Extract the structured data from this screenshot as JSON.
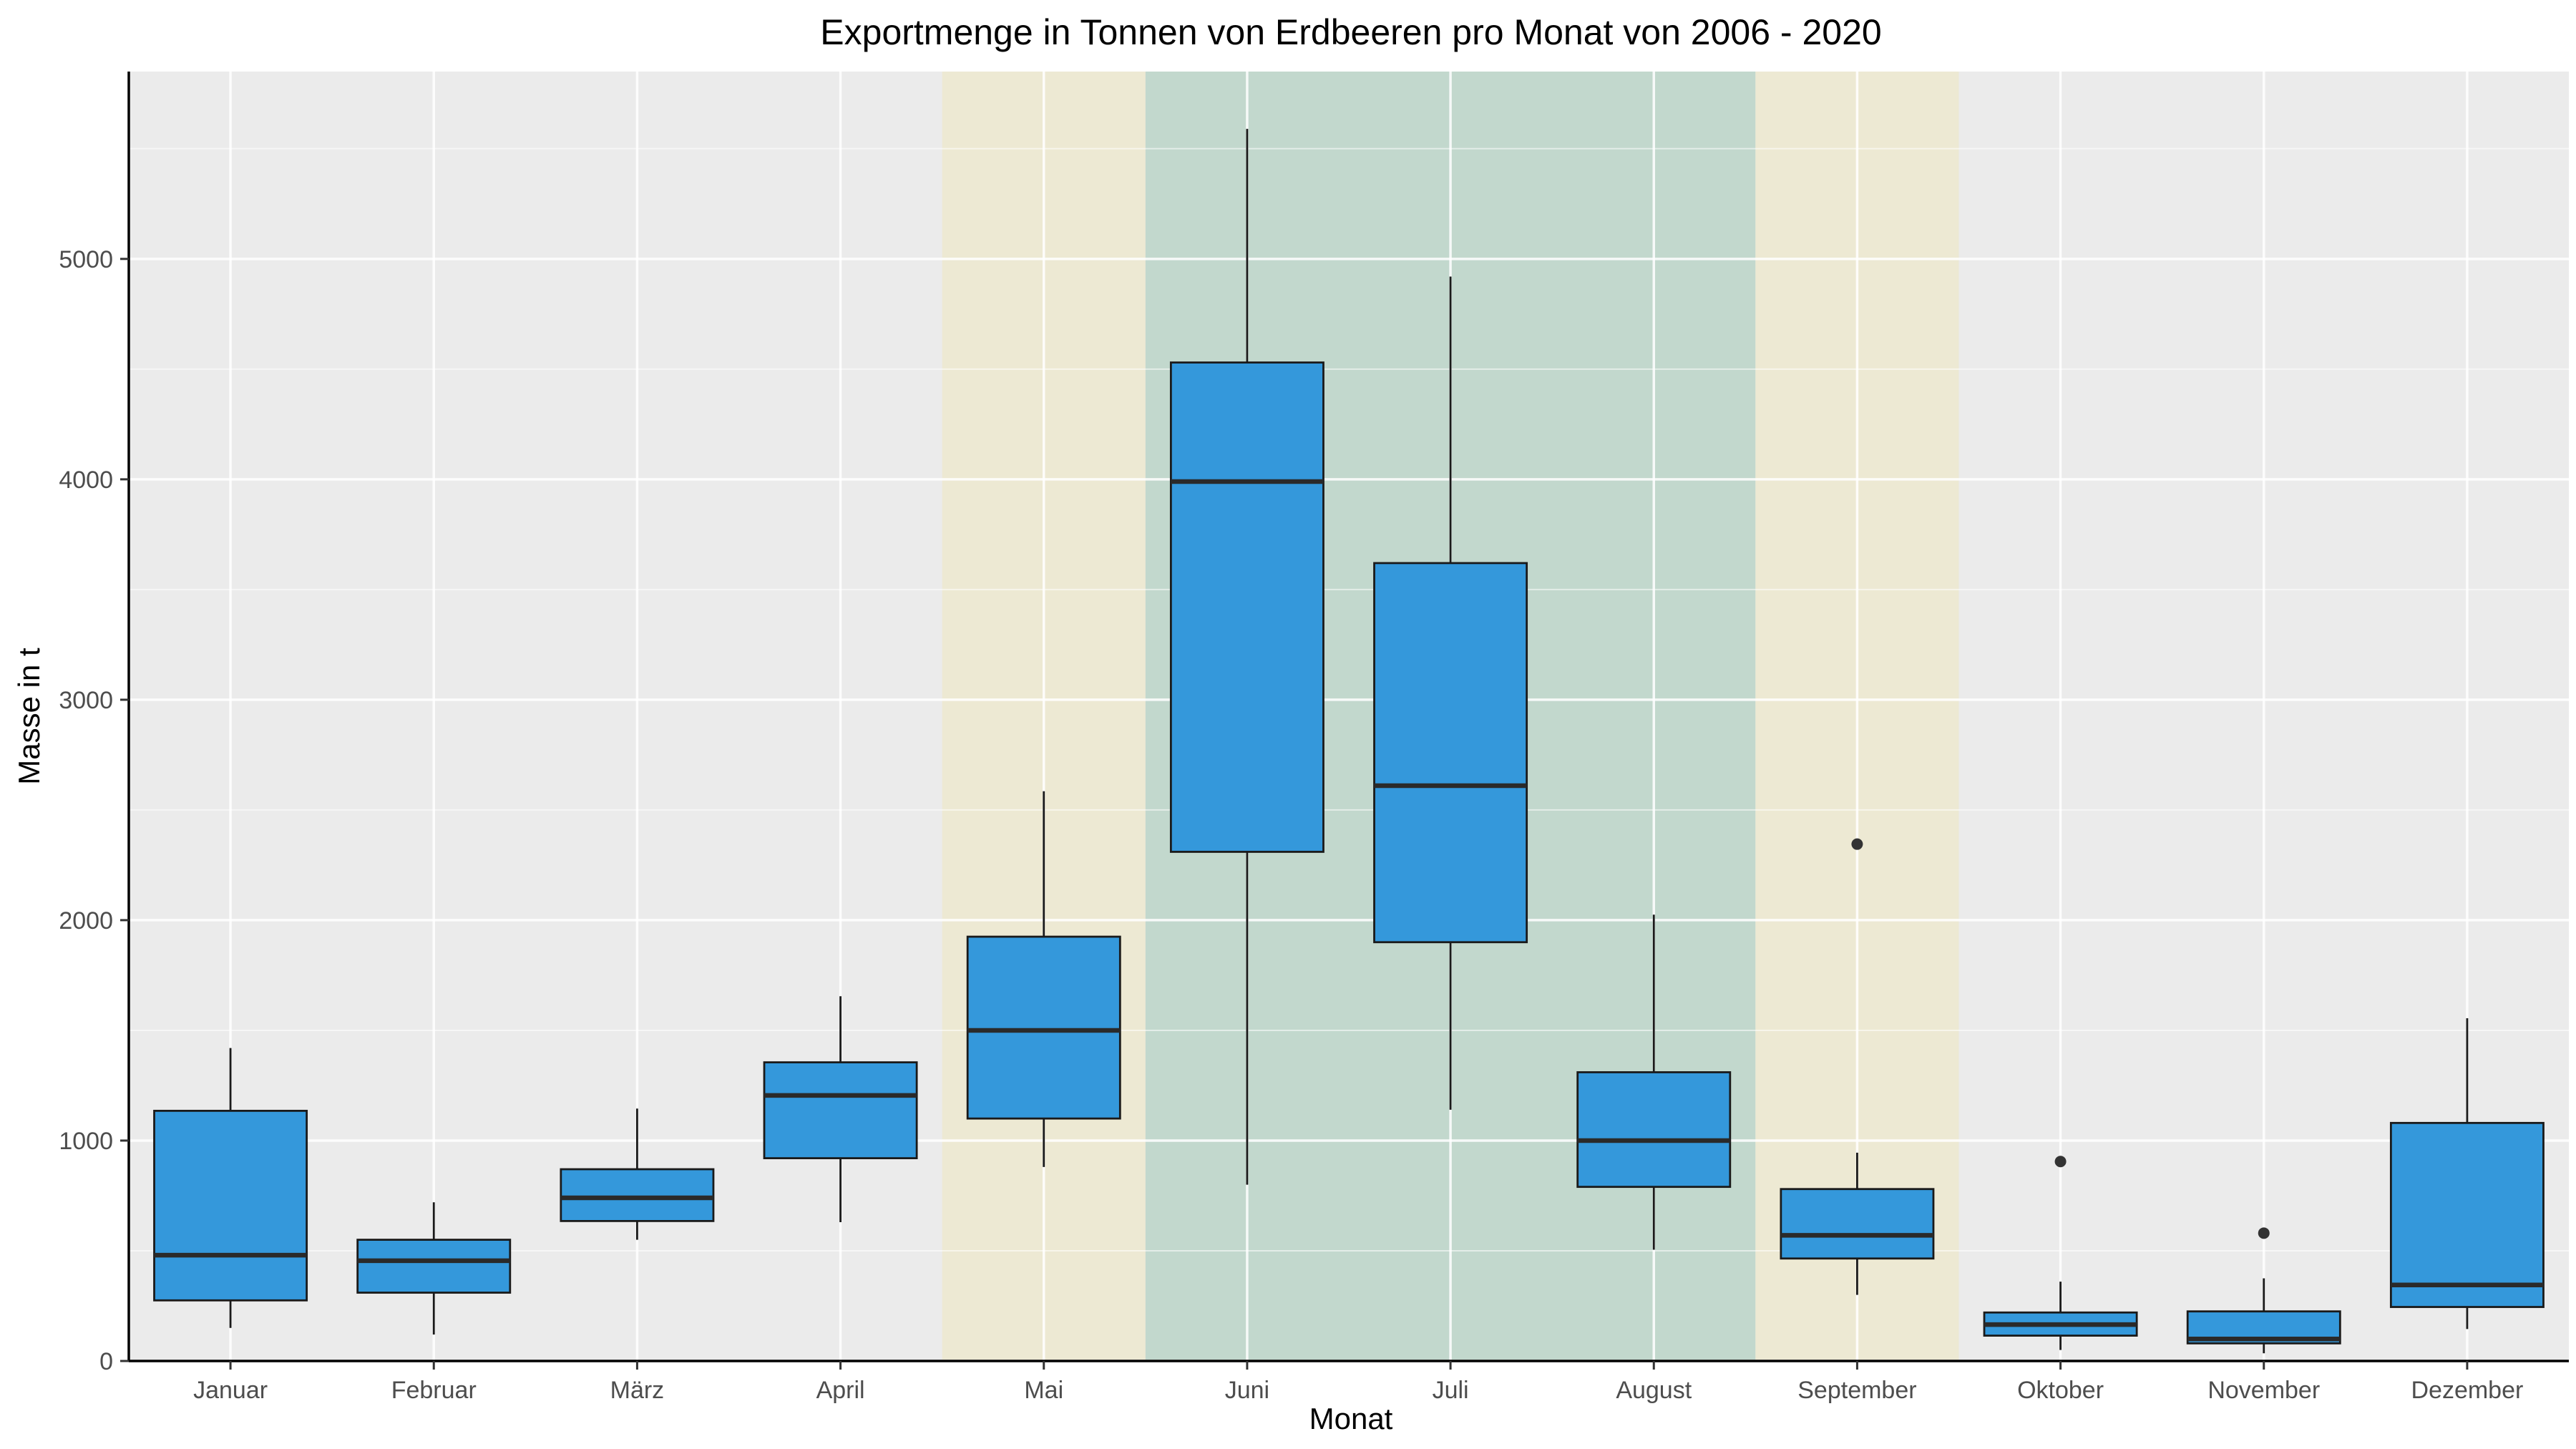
{
  "chart_data": {
    "type": "boxplot",
    "title": "Exportmenge in Tonnen von Erdbeeren pro Monat von 2006 - 2020",
    "xlabel": "Monat",
    "ylabel": "Masse in t",
    "ylim": [
      0,
      5850
    ],
    "yticks": [
      0,
      1000,
      2000,
      3000,
      4000,
      5000
    ],
    "ytick_labels": [
      "0",
      "1000",
      "2000",
      "3000",
      "4000",
      "5000"
    ],
    "grid": true,
    "legend": "none",
    "colors": {
      "box_fill": "#3498db",
      "box_stroke": "#1a1a1a",
      "panel_bg": "#ebebeb",
      "band_beige": "#ede9d3",
      "band_green": "#c2d8cd",
      "grid": "#ffffff"
    },
    "highlight_bands": [
      {
        "from": "Mai",
        "to": "Mai",
        "color": "#ede9d3"
      },
      {
        "from": "Juni",
        "to": "August",
        "color": "#c2d8cd"
      },
      {
        "from": "September",
        "to": "September",
        "color": "#ede9d3"
      }
    ],
    "categories": [
      "Januar",
      "Februar",
      "März",
      "April",
      "Mai",
      "Juni",
      "Juli",
      "August",
      "September",
      "Oktober",
      "November",
      "Dezember"
    ],
    "boxes": [
      {
        "min": 150,
        "q1": 275,
        "median": 480,
        "q3": 1135,
        "max": 1420,
        "outliers": []
      },
      {
        "min": 120,
        "q1": 310,
        "median": 455,
        "q3": 550,
        "max": 720,
        "outliers": []
      },
      {
        "min": 550,
        "q1": 635,
        "median": 740,
        "q3": 870,
        "max": 1145,
        "outliers": []
      },
      {
        "min": 630,
        "q1": 920,
        "median": 1205,
        "q3": 1355,
        "max": 1655,
        "outliers": []
      },
      {
        "min": 880,
        "q1": 1100,
        "median": 1500,
        "q3": 1925,
        "max": 2585,
        "outliers": []
      },
      {
        "min": 800,
        "q1": 2310,
        "median": 3990,
        "q3": 4530,
        "max": 5590,
        "outliers": []
      },
      {
        "min": 1140,
        "q1": 1900,
        "median": 2610,
        "q3": 3620,
        "max": 4920,
        "outliers": []
      },
      {
        "min": 505,
        "q1": 790,
        "median": 1000,
        "q3": 1310,
        "max": 2025,
        "outliers": []
      },
      {
        "min": 300,
        "q1": 465,
        "median": 570,
        "q3": 780,
        "max": 945,
        "outliers": [
          2345
        ]
      },
      {
        "min": 50,
        "q1": 115,
        "median": 165,
        "q3": 220,
        "max": 360,
        "outliers": [
          905
        ]
      },
      {
        "min": 35,
        "q1": 80,
        "median": 100,
        "q3": 225,
        "max": 375,
        "outliers": [
          580
        ]
      },
      {
        "min": 145,
        "q1": 245,
        "median": 345,
        "q3": 1080,
        "max": 1555,
        "outliers": []
      }
    ]
  }
}
